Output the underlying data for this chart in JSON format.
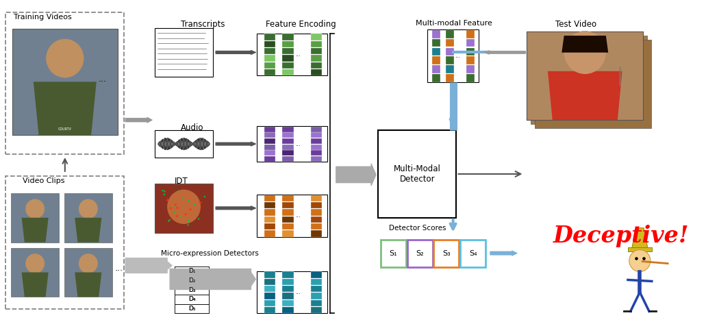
{
  "bg_color": "#ffffff",
  "training_videos_label": "Training Videos",
  "video_clips_label": "Video Clips",
  "transcripts_label": "Transcripts",
  "audio_label": "Audio",
  "idt_label": "IDT",
  "micro_exp_label": "Micro-expression Detectors",
  "feature_encoding_label": "Feature Encoding",
  "multimodal_feature_label": "Multi-modal Feature",
  "multimodal_detector_label": "Multi-Modal\nDetector",
  "test_video_label": "Test Video",
  "detector_scores_label": "Detector Scores",
  "deceptive_label": "Deceptive!",
  "score_labels": [
    "S₁",
    "S₂",
    "S₃",
    "S₄"
  ],
  "score_colors": [
    "#7fbf7f",
    "#9966cc",
    "#e67e22",
    "#5bc0de"
  ],
  "detector_labels": [
    "D₁",
    "D₂",
    "D₃",
    "D₄",
    "D₅"
  ],
  "feature_colors_transcripts": [
    "#3a6e30",
    "#5a9e45",
    "#7cc865",
    "#3a6e30",
    "#2a4e20",
    "#3a6e30",
    "#5a9e45"
  ],
  "feature_colors_audio": [
    "#6a3d9a",
    "#9b72cf",
    "#7b5ea7",
    "#4a2570",
    "#8a6bba",
    "#6a3d9a",
    "#9b72cf"
  ],
  "feature_colors_idt": [
    "#d07018",
    "#a04808",
    "#e09030",
    "#d07018",
    "#703800",
    "#d07018",
    "#a04808"
  ],
  "feature_colors_micro": [
    "#1a8090",
    "#2aA0b0",
    "#0a6080",
    "#3ab0c0",
    "#1a7080",
    "#1a8090",
    "#2aA0b0"
  ],
  "feature_colors_combined": [
    "#3a6e30",
    "#9b72cf",
    "#d07018",
    "#1a8090",
    "#3a6e30",
    "#9b72cf",
    "#d07018"
  ],
  "arrow_gray": "#999999",
  "arrow_dark": "#555555",
  "blue_color": "#7ab0d8"
}
